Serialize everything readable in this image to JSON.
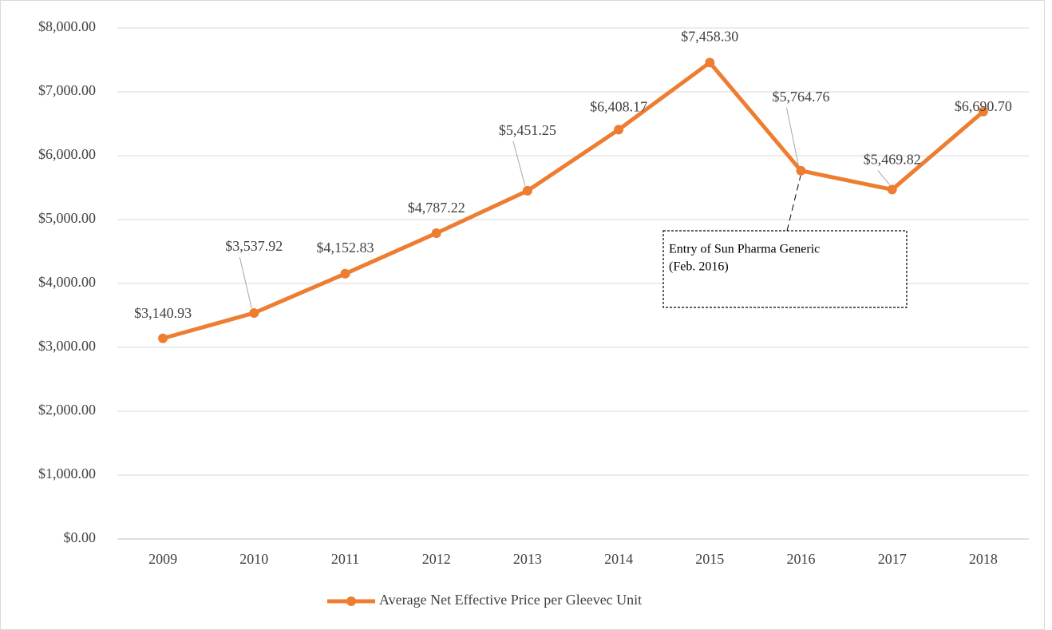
{
  "chart_data": {
    "type": "line",
    "categories": [
      "2009",
      "2010",
      "2011",
      "2012",
      "2013",
      "2014",
      "2015",
      "2016",
      "2017",
      "2018"
    ],
    "series": [
      {
        "name": "Average Net Effective Price per Gleevec Unit",
        "color": "#ED7D31",
        "values": [
          3140.93,
          3537.92,
          4152.83,
          4787.22,
          5451.25,
          6408.17,
          7458.3,
          5764.76,
          5469.82,
          6690.7
        ],
        "value_labels": [
          "$3,140.93",
          "$3,537.92",
          "$4,152.83",
          "$4,787.22",
          "$5,451.25",
          "$6,408.17",
          "$7,458.30",
          "$5,764.76",
          "$5,469.82",
          "$6,690.70"
        ]
      }
    ],
    "ylim": [
      0,
      8000
    ],
    "yticks": [
      {
        "value": 0,
        "label": "$0.00"
      },
      {
        "value": 1000,
        "label": "$1,000.00"
      },
      {
        "value": 2000,
        "label": "$2,000.00"
      },
      {
        "value": 3000,
        "label": "$3,000.00"
      },
      {
        "value": 4000,
        "label": "$4,000.00"
      },
      {
        "value": 5000,
        "label": "$5,000.00"
      },
      {
        "value": 6000,
        "label": "$6,000.00"
      },
      {
        "value": 7000,
        "label": "$7,000.00"
      },
      {
        "value": 8000,
        "label": "$8,000.00"
      }
    ],
    "grid": true,
    "legend": "bottom",
    "annotation": [
      "Entry of Sun Pharma Generic",
      "(Feb. 2016)"
    ]
  }
}
